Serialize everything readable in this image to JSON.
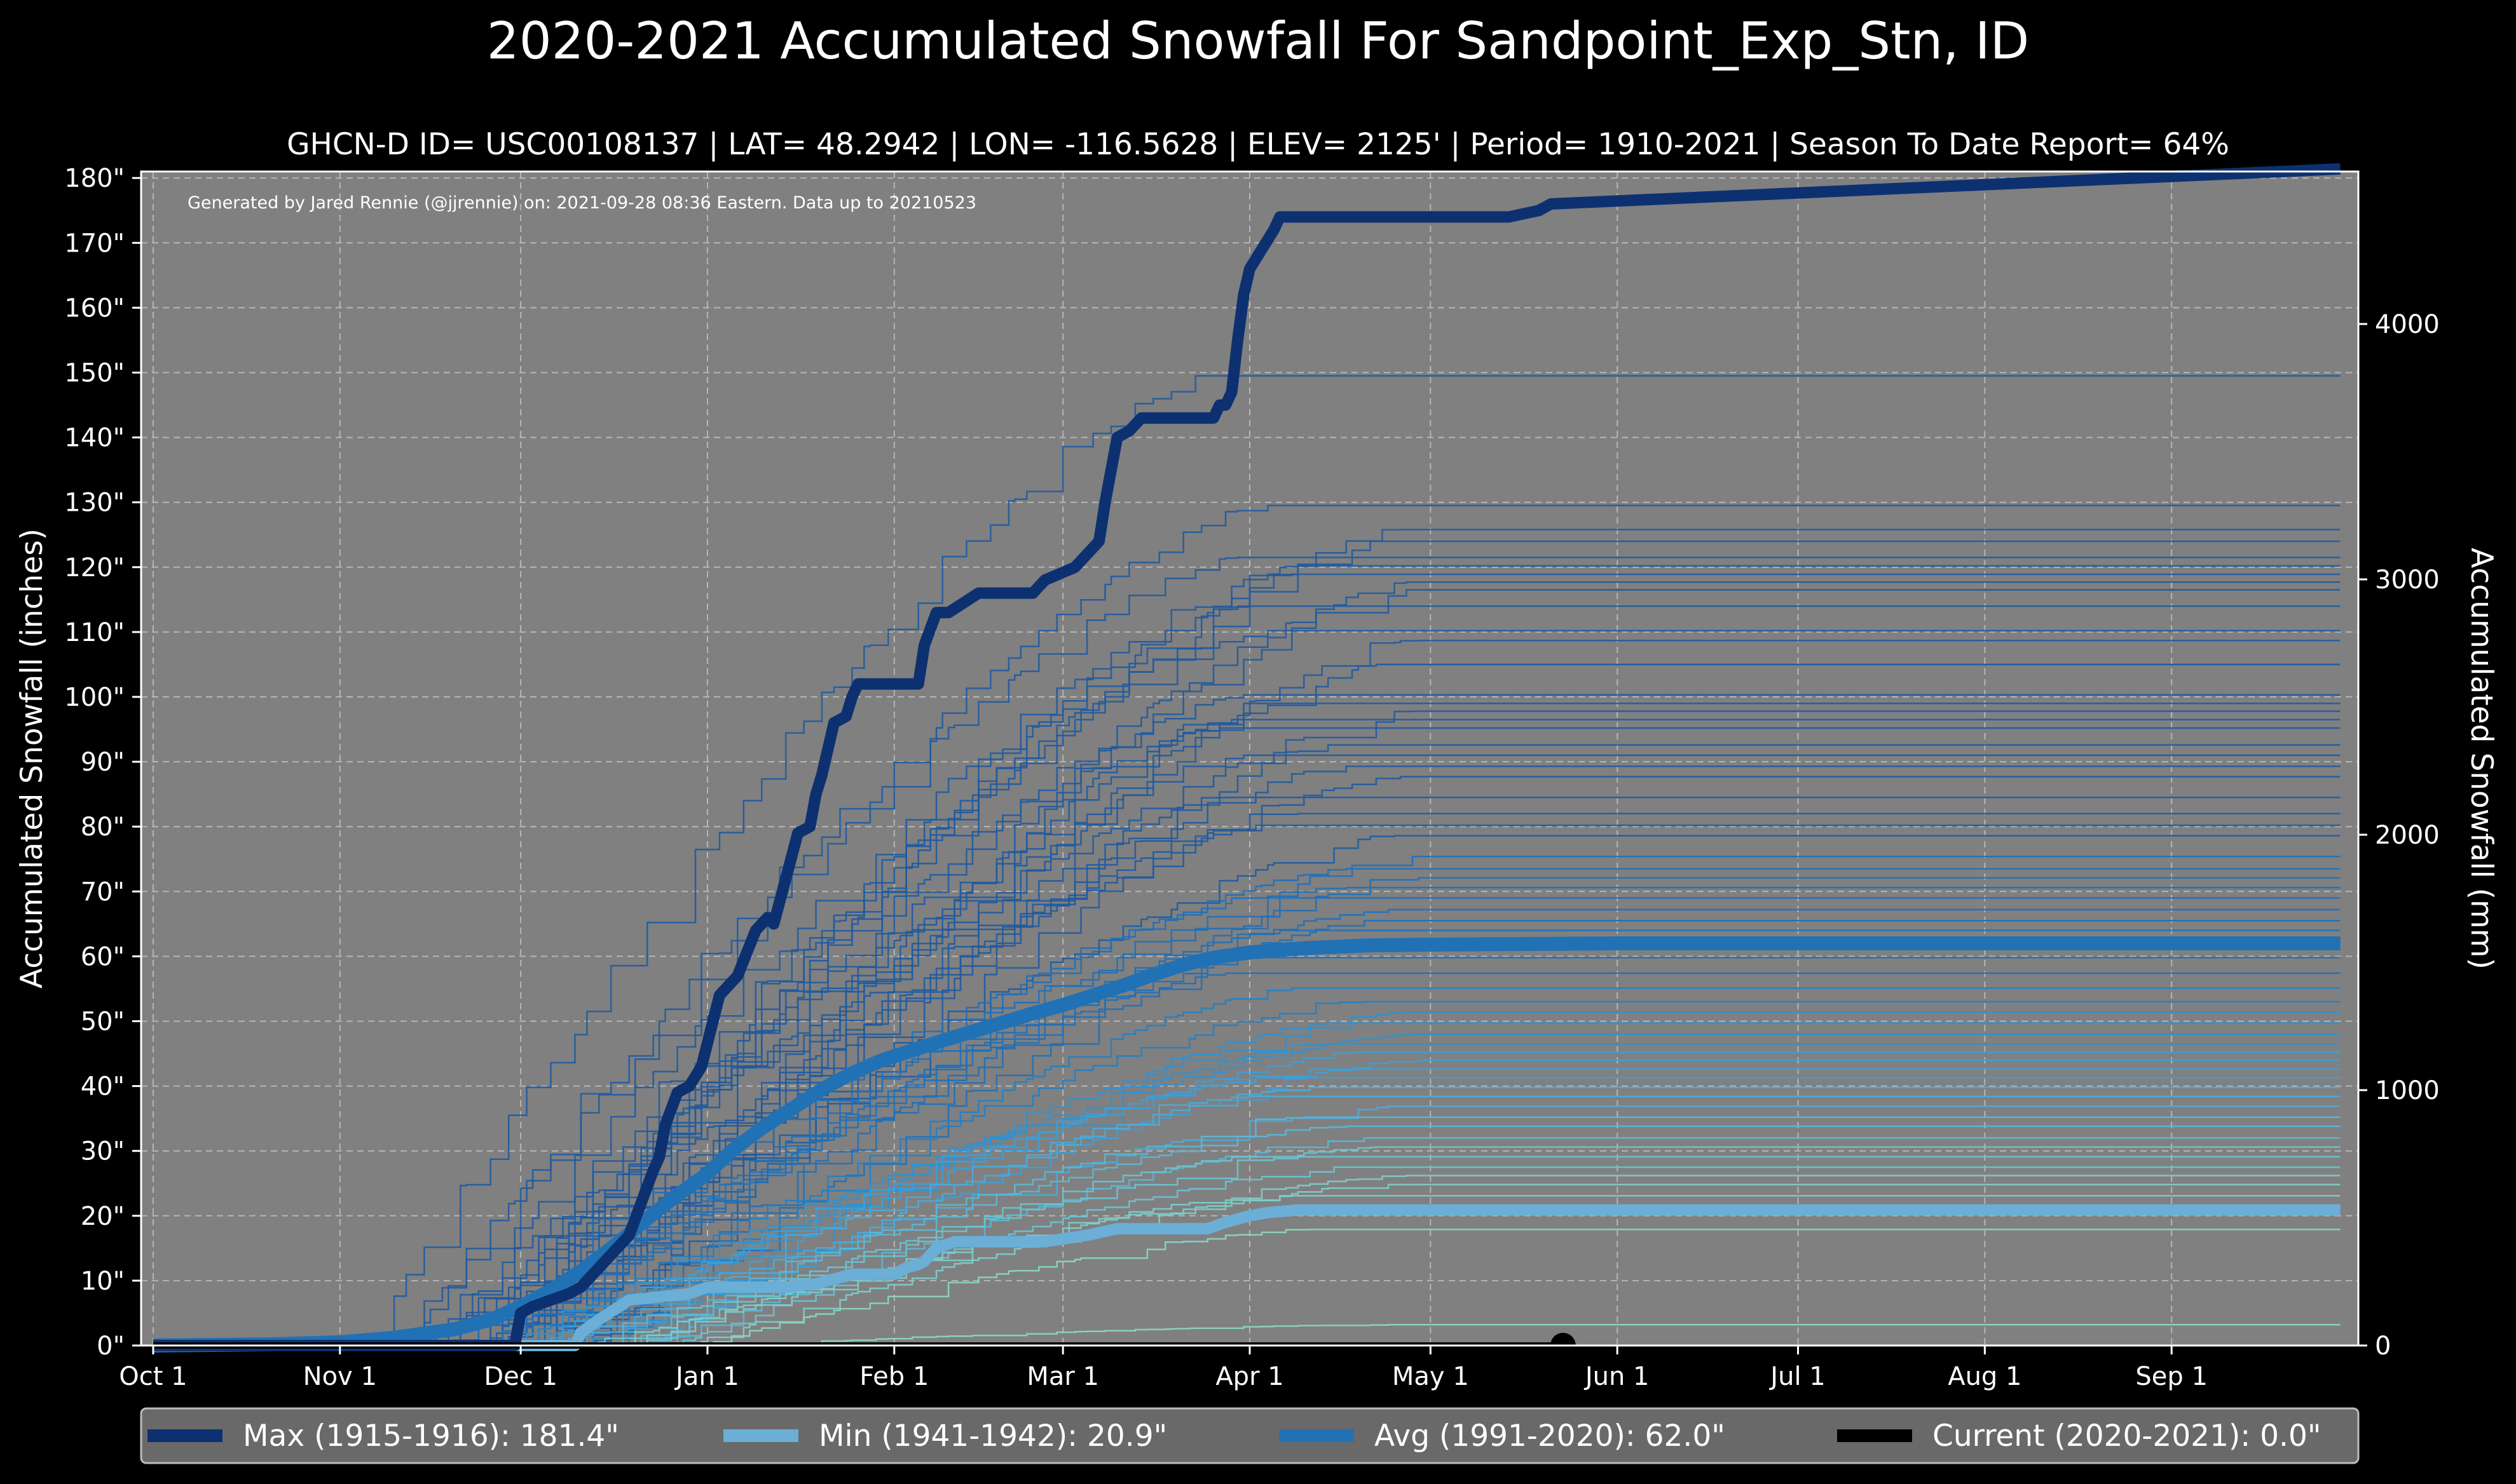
{
  "chart_data": {
    "type": "line",
    "title": "2020-2021 Accumulated Snowfall For Sandpoint_Exp_Stn, ID",
    "subtitle": "GHCN-D ID= USC00108137 | LAT= 48.2942 | LON= -116.5628 | ELEV= 2125' | Period= 1910-2021 | Season To Date Report= 64%",
    "credit": "Generated by Jared Rennie (@jjrennie) on: 2021-09-28 08:36 Eastern. Data up to 20210523",
    "ylabel": "Accumulated Snowfall (inches)",
    "ylabel_right": "Accumulated Snowfall (mm)",
    "x_unit": "day of season starting Oct 1",
    "xlim": [
      -2,
      366
    ],
    "ylim": [
      0,
      181
    ],
    "ylim_right_mm": [
      0,
      4597
    ],
    "x_ticks": [
      {
        "label": "Oct 1",
        "day": 0
      },
      {
        "label": "Nov 1",
        "day": 31
      },
      {
        "label": "Dec 1",
        "day": 61
      },
      {
        "label": "Jan 1",
        "day": 92
      },
      {
        "label": "Feb 1",
        "day": 123
      },
      {
        "label": "Mar 1",
        "day": 151
      },
      {
        "label": "Apr 1",
        "day": 182
      },
      {
        "label": "May 1",
        "day": 212
      },
      {
        "label": "Jun 1",
        "day": 243
      },
      {
        "label": "Jul 1",
        "day": 273
      },
      {
        "label": "Aug 1",
        "day": 304
      },
      {
        "label": "Sep 1",
        "day": 335
      }
    ],
    "y_ticks": [
      {
        "label": "0\"",
        "value": 0
      },
      {
        "label": "10\"",
        "value": 10
      },
      {
        "label": "20\"",
        "value": 20
      },
      {
        "label": "30\"",
        "value": 30
      },
      {
        "label": "40\"",
        "value": 40
      },
      {
        "label": "50\"",
        "value": 50
      },
      {
        "label": "60\"",
        "value": 60
      },
      {
        "label": "70\"",
        "value": 70
      },
      {
        "label": "80\"",
        "value": 80
      },
      {
        "label": "90\"",
        "value": 90
      },
      {
        "label": "100\"",
        "value": 100
      },
      {
        "label": "110\"",
        "value": 110
      },
      {
        "label": "120\"",
        "value": 120
      },
      {
        "label": "130\"",
        "value": 130
      },
      {
        "label": "140\"",
        "value": 140
      },
      {
        "label": "150\"",
        "value": 150
      },
      {
        "label": "160\"",
        "value": 160
      },
      {
        "label": "170\"",
        "value": 170
      },
      {
        "label": "180\"",
        "value": 180
      }
    ],
    "y_ticks_right": [
      {
        "label": "0",
        "mm": 0
      },
      {
        "label": "1000",
        "mm": 1000
      },
      {
        "label": "2000",
        "mm": 2000
      },
      {
        "label": "3000",
        "mm": 3000
      },
      {
        "label": "4000",
        "mm": 4000
      }
    ],
    "background_years_note": "thin lines = individual seasons 1910-2021",
    "background_series": [
      {
        "end": 149.5,
        "onset": 35,
        "color": "#1f5aa0"
      },
      {
        "end": 129.5,
        "onset": 42,
        "color": "#1f5aa0"
      },
      {
        "end": 125.8,
        "onset": 50,
        "color": "#1f5aa0"
      },
      {
        "end": 124.0,
        "onset": 55,
        "color": "#1f5aa0"
      },
      {
        "end": 121.5,
        "onset": 40,
        "color": "#1f5aa0"
      },
      {
        "end": 120.2,
        "onset": 60,
        "color": "#1f5aa0"
      },
      {
        "end": 118.9,
        "onset": 45,
        "color": "#1f5aa0"
      },
      {
        "end": 117.7,
        "onset": 52,
        "color": "#1f5aa0"
      },
      {
        "end": 116.5,
        "onset": 66,
        "color": "#1f5aa0"
      },
      {
        "end": 114.0,
        "onset": 58,
        "color": "#1f5aa0"
      },
      {
        "end": 110.2,
        "onset": 48,
        "color": "#1f5aa0"
      },
      {
        "end": 108.7,
        "onset": 62,
        "color": "#1f5aa0"
      },
      {
        "end": 105.0,
        "onset": 70,
        "color": "#1f5aa0"
      },
      {
        "end": 100.3,
        "onset": 53,
        "color": "#1f5aa0"
      },
      {
        "end": 99.0,
        "onset": 64,
        "color": "#1f5aa0"
      },
      {
        "end": 97.8,
        "onset": 44,
        "color": "#1f5aa0"
      },
      {
        "end": 96.5,
        "onset": 68,
        "color": "#1f5aa0"
      },
      {
        "end": 95.2,
        "onset": 56,
        "color": "#1f5aa0"
      },
      {
        "end": 92.6,
        "onset": 72,
        "color": "#1f5aa0"
      },
      {
        "end": 91.0,
        "onset": 50,
        "color": "#1f5aa0"
      },
      {
        "end": 89.3,
        "onset": 60,
        "color": "#1f5aa0"
      },
      {
        "end": 87.7,
        "onset": 46,
        "color": "#1f5aa0"
      },
      {
        "end": 84.5,
        "onset": 66,
        "color": "#1f5aa0"
      },
      {
        "end": 82.0,
        "onset": 54,
        "color": "#1f5aa0"
      },
      {
        "end": 80.2,
        "onset": 74,
        "color": "#1f5aa0"
      },
      {
        "end": 78.6,
        "onset": 58,
        "color": "#1f5aa0"
      },
      {
        "end": 75.4,
        "onset": 63,
        "color": "#1f6fb8"
      },
      {
        "end": 73.5,
        "onset": 48,
        "color": "#1f6fb8"
      },
      {
        "end": 72.1,
        "onset": 70,
        "color": "#1f6fb8"
      },
      {
        "end": 70.6,
        "onset": 57,
        "color": "#1f6fb8"
      },
      {
        "end": 69.0,
        "onset": 65,
        "color": "#1f6fb8"
      },
      {
        "end": 67.2,
        "onset": 52,
        "color": "#1f6fb8"
      },
      {
        "end": 65.5,
        "onset": 76,
        "color": "#1f6fb8"
      },
      {
        "end": 64.0,
        "onset": 61,
        "color": "#1f6fb8"
      },
      {
        "end": 59.8,
        "onset": 68,
        "color": "#1f6fb8"
      },
      {
        "end": 57.4,
        "onset": 55,
        "color": "#1f6fb8"
      },
      {
        "end": 55.1,
        "onset": 72,
        "color": "#1f80c8"
      },
      {
        "end": 53.0,
        "onset": 60,
        "color": "#1f80c8"
      },
      {
        "end": 51.4,
        "onset": 66,
        "color": "#2b92d4"
      },
      {
        "end": 49.7,
        "onset": 78,
        "color": "#2b92d4"
      },
      {
        "end": 48.0,
        "onset": 58,
        "color": "#2b92d4"
      },
      {
        "end": 46.5,
        "onset": 70,
        "color": "#2b92d4"
      },
      {
        "end": 45.2,
        "onset": 64,
        "color": "#3aa0dc"
      },
      {
        "end": 44.0,
        "onset": 80,
        "color": "#3aa0dc"
      },
      {
        "end": 42.6,
        "onset": 62,
        "color": "#3aa0dc"
      },
      {
        "end": 41.3,
        "onset": 74,
        "color": "#3aa0dc"
      },
      {
        "end": 39.8,
        "onset": 68,
        "color": "#49acdc"
      },
      {
        "end": 38.4,
        "onset": 82,
        "color": "#49acdc"
      },
      {
        "end": 36.9,
        "onset": 66,
        "color": "#49acdc"
      },
      {
        "end": 35.2,
        "onset": 76,
        "color": "#5ab8d8"
      },
      {
        "end": 33.8,
        "onset": 70,
        "color": "#5ab8d8"
      },
      {
        "end": 32.0,
        "onset": 84,
        "color": "#5ab8d8"
      },
      {
        "end": 30.6,
        "onset": 72,
        "color": "#6cc4d4"
      },
      {
        "end": 29.1,
        "onset": 80,
        "color": "#6cc4d4"
      },
      {
        "end": 27.5,
        "onset": 86,
        "color": "#6cc4d4"
      },
      {
        "end": 26.2,
        "onset": 74,
        "color": "#7ccfcc"
      },
      {
        "end": 24.8,
        "onset": 88,
        "color": "#7ccfcc"
      },
      {
        "end": 23.1,
        "onset": 78,
        "color": "#7ccfcc"
      },
      {
        "end": 17.9,
        "onset": 90,
        "color": "#8ad8c4"
      },
      {
        "end": 3.2,
        "onset": 95,
        "color": "#8ad8c4"
      }
    ],
    "series": [
      {
        "name": "Max (1915-1916)",
        "total": 181.4,
        "color": "#0d3170",
        "x": [
          0,
          60,
          61,
          63,
          66,
          69,
          71,
          74,
          77,
          79,
          81,
          83,
          84,
          85,
          87,
          89,
          91,
          94,
          97,
          100,
          102,
          103,
          105,
          107,
          109,
          110,
          111,
          112,
          113,
          115,
          116,
          117,
          118,
          120,
          125,
          127,
          128,
          130,
          132,
          137,
          140,
          141,
          143,
          144,
          145,
          146,
          148,
          153,
          157,
          158,
          160,
          162,
          163,
          164,
          165,
          167,
          168,
          169,
          172,
          176,
          177,
          178,
          179,
          180,
          181,
          182,
          186,
          187,
          188,
          190,
          195,
          200,
          205,
          210,
          215,
          220,
          225,
          230,
          232,
          363
        ],
        "y": [
          0,
          0,
          5,
          6,
          7,
          8,
          9,
          12,
          15,
          17,
          22,
          27,
          29,
          34,
          39,
          40,
          43,
          54,
          57,
          64,
          66,
          65,
          72,
          79,
          80,
          85,
          88,
          92,
          96,
          97,
          100,
          102,
          102,
          102,
          102,
          102,
          108,
          113,
          113,
          116,
          116,
          116,
          116,
          116,
          116,
          116,
          118,
          120,
          124,
          130,
          140,
          141,
          142,
          143,
          143,
          143,
          143,
          143,
          143,
          143,
          145,
          145,
          147,
          155,
          162,
          166,
          172,
          174,
          174,
          174,
          174,
          174,
          174,
          174,
          174,
          174,
          174,
          175,
          176,
          181.4
        ]
      },
      {
        "name": "Min (1941-1942)",
        "total": 20.9,
        "color": "#6baed6",
        "x": [
          0,
          70,
          71,
          74,
          79,
          89,
          92,
          98,
          105,
          110,
          116,
          123,
          125,
          127,
          128,
          130,
          133,
          140,
          148,
          155,
          160,
          170,
          175,
          178,
          180,
          182,
          185,
          190,
          363
        ],
        "y": [
          0,
          0,
          2,
          4,
          7,
          8,
          9,
          9,
          9,
          9.5,
          11,
          11,
          12,
          12.5,
          13,
          15,
          16,
          16,
          16,
          17,
          18,
          18,
          18,
          19,
          19.5,
          20,
          20.5,
          20.9,
          20.9
        ]
      },
      {
        "name": "Avg (1991-2020)",
        "total": 62.0,
        "color": "#2171b5",
        "x": [
          0,
          20,
          31,
          40,
          50,
          56,
          61,
          66,
          71,
          76,
          81,
          86,
          92,
          96,
          101,
          106,
          111,
          116,
          121,
          126,
          131,
          136,
          141,
          146,
          151,
          156,
          161,
          166,
          171,
          176,
          182,
          187,
          192,
          197,
          202,
          212,
          243,
          273,
          304,
          335,
          363
        ],
        "y": [
          0,
          0.2,
          0.5,
          1.2,
          2.5,
          4,
          6,
          8.5,
          11.5,
          15,
          18.8,
          22.5,
          26.5,
          30,
          33.5,
          36.5,
          39.5,
          42,
          44,
          45.5,
          47,
          48.4,
          49.8,
          51.2,
          52.5,
          54,
          55.5,
          57.2,
          58.7,
          59.8,
          60.6,
          61.0,
          61.3,
          61.5,
          61.7,
          61.8,
          62.0,
          62.0,
          62.0,
          62.0,
          62.0
        ]
      },
      {
        "name": "Current (2020-2021)",
        "total": 0.0,
        "color": "#000000",
        "x": [
          0,
          234
        ],
        "y": [
          0,
          0
        ]
      }
    ],
    "legend": {
      "placement": "bottom",
      "entries": [
        "Max (1915-1916):  181.4\"",
        "Min (1941-1942):   20.9\"",
        "Avg (1991-2020):   62.0\"",
        "Current (2020-2021): 0.0\""
      ],
      "colors": [
        "#0d3170",
        "#6baed6",
        "#2171b5",
        "#000000"
      ]
    },
    "colors": {
      "background": "#000000",
      "plot_bg": "#808080",
      "legend_bg": "#696969"
    }
  }
}
